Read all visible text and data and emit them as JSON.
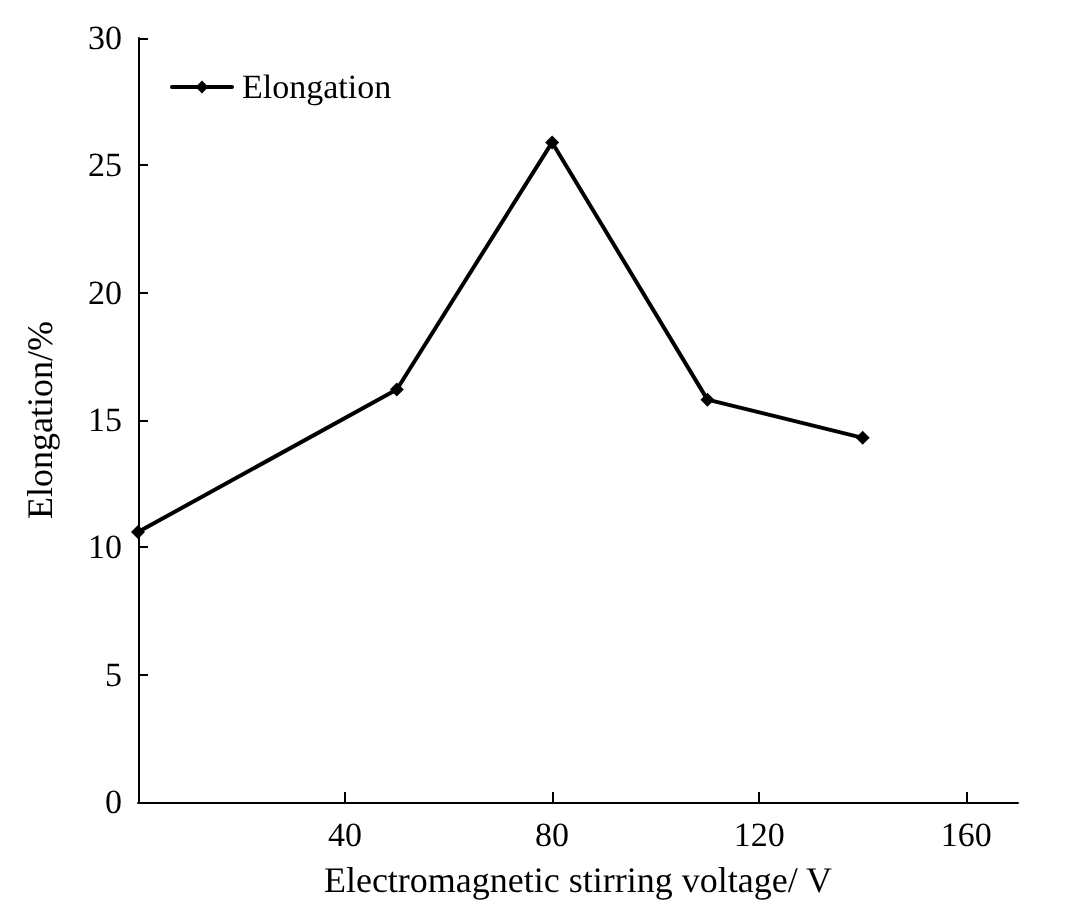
{
  "chart_data": {
    "type": "line",
    "xlabel": "Electromagnetic stirring voltage/ V",
    "ylabel": "Elongation/%",
    "x": [
      0,
      50,
      80,
      110,
      140
    ],
    "series": [
      {
        "name": "Elongation",
        "color": "#000000",
        "values": [
          10.6,
          16.2,
          25.9,
          15.8,
          14.3
        ]
      }
    ],
    "xlim": [
      0,
      170
    ],
    "xticks": [
      {
        "value": 0,
        "label": null
      },
      40,
      80,
      120,
      160
    ],
    "ylim": [
      0,
      30
    ],
    "yticks": [
      0,
      5,
      10,
      15,
      20,
      25,
      30
    ],
    "grid": false,
    "legend": "top left",
    "marker": "diamond",
    "line_style": "solid"
  }
}
